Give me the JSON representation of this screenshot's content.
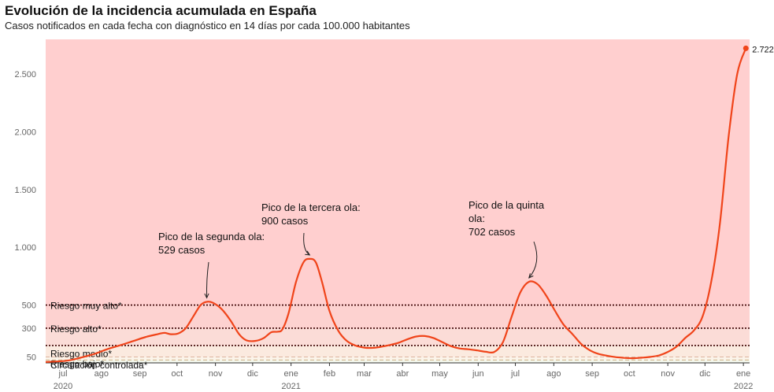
{
  "header": {
    "title": "Evolución de la incidencia acumulada en España",
    "subtitle": "Casos notificados en cada fecha con diagnóstico en 14 días por cada 100.000 habitantes"
  },
  "chart_data": {
    "type": "line",
    "title": "Evolución de la incidencia acumulada en España",
    "subtitle": "Casos notificados en cada fecha con diagnóstico en 14 días por cada 100.000 habitantes",
    "xlabel": "",
    "ylabel": "",
    "ylim": [
      0,
      2800
    ],
    "xlim": [
      "2020-07-01",
      "2022-01-20"
    ],
    "grid": false,
    "y_ticks": [
      {
        "value": 50,
        "label": "50"
      },
      {
        "value": 300,
        "label": "300"
      },
      {
        "value": 500,
        "label": "500"
      },
      {
        "value": 1000,
        "label": "1.000"
      },
      {
        "value": 1500,
        "label": "1.500"
      },
      {
        "value": 2000,
        "label": "2.000"
      },
      {
        "value": 2500,
        "label": "2.500"
      }
    ],
    "x_ticks": [
      {
        "date": "2020-07-15",
        "label": "jul",
        "year": "2020"
      },
      {
        "date": "2020-08-15",
        "label": "ago",
        "year": ""
      },
      {
        "date": "2020-09-15",
        "label": "sep",
        "year": ""
      },
      {
        "date": "2020-10-15",
        "label": "oct",
        "year": ""
      },
      {
        "date": "2020-11-15",
        "label": "nov",
        "year": ""
      },
      {
        "date": "2020-12-15",
        "label": "dic",
        "year": ""
      },
      {
        "date": "2021-01-15",
        "label": "ene",
        "year": "2021"
      },
      {
        "date": "2021-02-15",
        "label": "feb",
        "year": ""
      },
      {
        "date": "2021-03-15",
        "label": "mar",
        "year": ""
      },
      {
        "date": "2021-04-15",
        "label": "abr",
        "year": ""
      },
      {
        "date": "2021-05-15",
        "label": "may",
        "year": ""
      },
      {
        "date": "2021-06-15",
        "label": "jun",
        "year": ""
      },
      {
        "date": "2021-07-15",
        "label": "jul",
        "year": ""
      },
      {
        "date": "2021-08-15",
        "label": "ago",
        "year": ""
      },
      {
        "date": "2021-09-15",
        "label": "sep",
        "year": ""
      },
      {
        "date": "2021-10-15",
        "label": "oct",
        "year": ""
      },
      {
        "date": "2021-11-15",
        "label": "nov",
        "year": ""
      },
      {
        "date": "2021-12-15",
        "label": "dic",
        "year": ""
      },
      {
        "date": "2022-01-15",
        "label": "ene",
        "year": "2022"
      }
    ],
    "risk_bands": [
      {
        "name": "Circulación controlada*",
        "from": 0,
        "to": 25,
        "color": "#f3f7ec",
        "line_style": "dashed",
        "line_color": "#555555"
      },
      {
        "name": "Riesgo bajo*",
        "from": 25,
        "to": 50,
        "color": "#fbf4ea",
        "line_style": "dashed",
        "line_color": "#c9a776"
      },
      {
        "name": "Riesgo medio*",
        "from": 50,
        "to": 150,
        "color": "#fbeadf",
        "line_style": "dashed",
        "line_color": "#d2a28a"
      },
      {
        "name": "Riesgo alto*",
        "from": 150,
        "to": 300,
        "color": "#fbdcd7",
        "line_style": "dotted",
        "line_color": "#3a0000"
      },
      {
        "name": "Riesgo muy alto*",
        "from": 300,
        "to": 500,
        "color": "#fdd2d0",
        "line_style": "dotted",
        "line_color": "#3a0000"
      },
      {
        "name": "",
        "from": 500,
        "to": 2800,
        "color": "#ffcfcf"
      }
    ],
    "series": [
      {
        "name": "",
        "color": "#f0441a",
        "points": [
          [
            "2020-07-01",
            8
          ],
          [
            "2020-07-10",
            12
          ],
          [
            "2020-07-20",
            22
          ],
          [
            "2020-07-31",
            50
          ],
          [
            "2020-08-10",
            80
          ],
          [
            "2020-08-20",
            120
          ],
          [
            "2020-08-31",
            155
          ],
          [
            "2020-09-10",
            190
          ],
          [
            "2020-09-20",
            225
          ],
          [
            "2020-09-30",
            250
          ],
          [
            "2020-10-05",
            260
          ],
          [
            "2020-10-10",
            248
          ],
          [
            "2020-10-16",
            255
          ],
          [
            "2020-10-22",
            300
          ],
          [
            "2020-10-28",
            400
          ],
          [
            "2020-11-03",
            500
          ],
          [
            "2020-11-08",
            529
          ],
          [
            "2020-11-13",
            520
          ],
          [
            "2020-11-20",
            465
          ],
          [
            "2020-11-27",
            370
          ],
          [
            "2020-12-04",
            250
          ],
          [
            "2020-12-10",
            195
          ],
          [
            "2020-12-17",
            190
          ],
          [
            "2020-12-24",
            215
          ],
          [
            "2020-12-30",
            265
          ],
          [
            "2021-01-04",
            270
          ],
          [
            "2021-01-08",
            290
          ],
          [
            "2021-01-13",
            430
          ],
          [
            "2021-01-19",
            700
          ],
          [
            "2021-01-25",
            870
          ],
          [
            "2021-01-30",
            900
          ],
          [
            "2021-02-04",
            870
          ],
          [
            "2021-02-09",
            700
          ],
          [
            "2021-02-15",
            450
          ],
          [
            "2021-02-22",
            280
          ],
          [
            "2021-03-01",
            190
          ],
          [
            "2021-03-08",
            150
          ],
          [
            "2021-03-15",
            132
          ],
          [
            "2021-03-22",
            130
          ],
          [
            "2021-03-29",
            140
          ],
          [
            "2021-04-05",
            155
          ],
          [
            "2021-04-12",
            175
          ],
          [
            "2021-04-19",
            205
          ],
          [
            "2021-04-26",
            228
          ],
          [
            "2021-05-03",
            232
          ],
          [
            "2021-05-10",
            215
          ],
          [
            "2021-05-17",
            180
          ],
          [
            "2021-05-24",
            145
          ],
          [
            "2021-05-31",
            125
          ],
          [
            "2021-06-07",
            118
          ],
          [
            "2021-06-14",
            108
          ],
          [
            "2021-06-21",
            96
          ],
          [
            "2021-06-28",
            95
          ],
          [
            "2021-07-05",
            180
          ],
          [
            "2021-07-12",
            400
          ],
          [
            "2021-07-19",
            610
          ],
          [
            "2021-07-26",
            702
          ],
          [
            "2021-08-02",
            680
          ],
          [
            "2021-08-09",
            580
          ],
          [
            "2021-08-16",
            450
          ],
          [
            "2021-08-23",
            330
          ],
          [
            "2021-08-30",
            250
          ],
          [
            "2021-09-06",
            165
          ],
          [
            "2021-09-13",
            110
          ],
          [
            "2021-09-20",
            78
          ],
          [
            "2021-09-27",
            62
          ],
          [
            "2021-10-04",
            50
          ],
          [
            "2021-10-11",
            43
          ],
          [
            "2021-10-18",
            40
          ],
          [
            "2021-10-25",
            45
          ],
          [
            "2021-11-01",
            52
          ],
          [
            "2021-11-08",
            65
          ],
          [
            "2021-11-15",
            95
          ],
          [
            "2021-11-22",
            140
          ],
          [
            "2021-11-29",
            215
          ],
          [
            "2021-12-06",
            280
          ],
          [
            "2021-12-13",
            400
          ],
          [
            "2021-12-20",
            700
          ],
          [
            "2021-12-27",
            1200
          ],
          [
            "2022-01-03",
            1950
          ],
          [
            "2022-01-10",
            2500
          ],
          [
            "2022-01-17",
            2722.27
          ]
        ]
      }
    ],
    "last_point": {
      "date": "2022-01-17",
      "value": 2722.27,
      "label": "2.722,27"
    },
    "annotations": [
      {
        "lines": [
          "Pico de la segunda ola:",
          "529 casos"
        ],
        "date": "2020-11-08",
        "value": 529
      },
      {
        "lines": [
          "Pico de la tercera ola:",
          "900 casos"
        ],
        "date": "2021-01-30",
        "value": 900
      },
      {
        "lines": [
          "Pico de la quinta",
          "ola:",
          "702 casos"
        ],
        "date": "2021-07-26",
        "value": 702
      }
    ]
  }
}
